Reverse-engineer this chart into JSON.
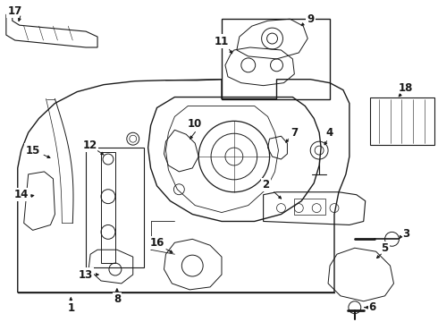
{
  "bg_color": "#ffffff",
  "line_color": "#1a1a1a",
  "fig_width": 4.9,
  "fig_height": 3.6,
  "dpi": 100,
  "label_fontsize": 8.5,
  "label_fontweight": "bold"
}
